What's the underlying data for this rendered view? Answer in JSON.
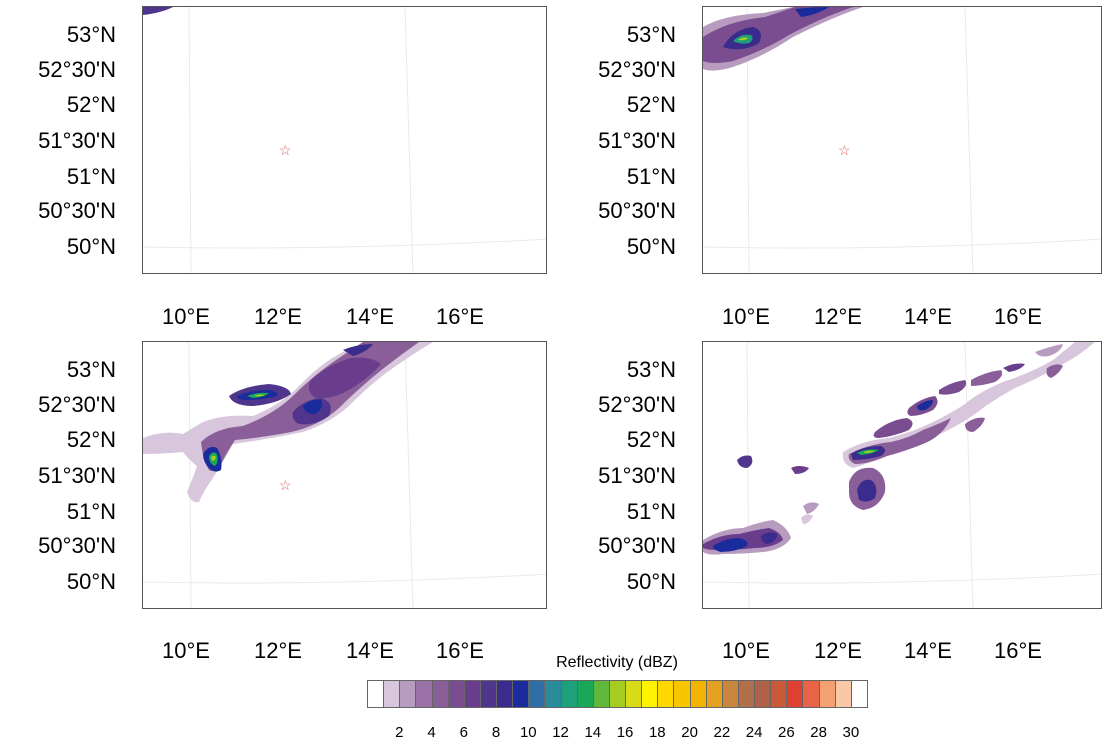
{
  "panels": [
    {
      "id": "panel-1"
    },
    {
      "id": "panel-2"
    },
    {
      "id": "panel-3"
    },
    {
      "id": "panel-4"
    }
  ],
  "lat_labels": [
    "53°N",
    "52°30'N",
    "52°N",
    "51°30'N",
    "51°N",
    "50°30'N",
    "50°N"
  ],
  "lon_labels": [
    "10°E",
    "12°E",
    "14°E",
    "16°E"
  ],
  "site_marker": {
    "symbol": "☆",
    "color": "#e06060"
  },
  "colorbar": {
    "title": "Reflectivity  (dBZ)",
    "tick_labels": [
      "2",
      "4",
      "6",
      "8",
      "10",
      "12",
      "14",
      "16",
      "18",
      "20",
      "22",
      "24",
      "26",
      "28",
      "30"
    ],
    "colors": [
      "#ffffff",
      "#d8c6dc",
      "#b89cc0",
      "#9a72a8",
      "#8a5e98",
      "#7a4c90",
      "#6a3c8c",
      "#4f358c",
      "#3a2c8c",
      "#1a2c9c",
      "#2f6ea6",
      "#2a8c9a",
      "#1fa07c",
      "#19a85a",
      "#5fb83a",
      "#a6cc22",
      "#d8dc18",
      "#fff200",
      "#ffd800",
      "#f7c600",
      "#f2b400",
      "#e6a020",
      "#c8863c",
      "#b0704c",
      "#b06248",
      "#c85a3a",
      "#e04030",
      "#e86448",
      "#f4a070",
      "#f8c8a8",
      "#ffffff"
    ]
  }
}
